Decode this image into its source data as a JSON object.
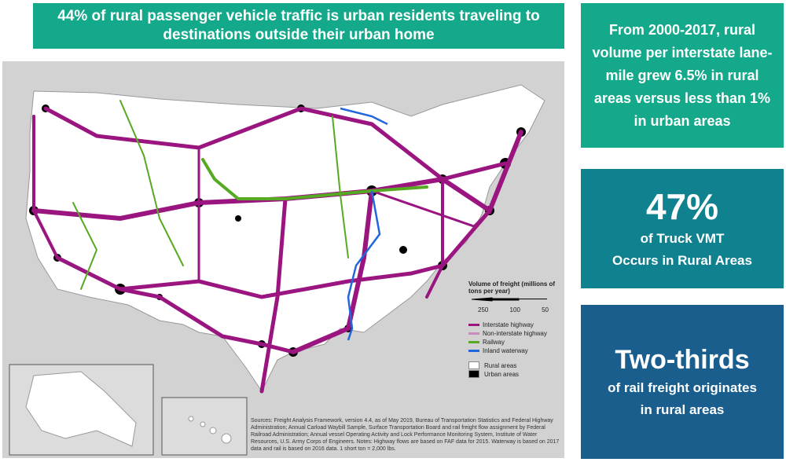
{
  "banner": {
    "text": "44% of rural passenger vehicle traffic is urban residents traveling to destinations outside their urban home"
  },
  "panel1": {
    "text": "From 2000-2017, rural volume per interstate lane-mile grew 6.5% in rural areas versus less than 1% in urban areas"
  },
  "panel2": {
    "value": "47%",
    "line1": "of Truck VMT",
    "line2": "Occurs in Rural Areas"
  },
  "panel3": {
    "value": "Two-thirds",
    "line1": "of rail freight originates",
    "line2": "in rural areas"
  },
  "legend": {
    "title": "Volume of freight (millions of tons per year)",
    "scale": [
      "250",
      "100",
      "50"
    ],
    "items": [
      {
        "label": "Interstate highway",
        "color": "#9b1580"
      },
      {
        "label": "Non-interstate highway",
        "color": "#c98bc0"
      },
      {
        "label": "Railway",
        "color": "#55aa22"
      },
      {
        "label": "Inland waterway",
        "color": "#2266dd"
      }
    ],
    "areas": [
      {
        "label": "Rural areas",
        "color": "#ffffff"
      },
      {
        "label": "Urban areas",
        "color": "#000000"
      }
    ]
  },
  "sources": "Sources: Freight Analysis Framework, version 4.4, as of May 2019, Bureau of Transportation Statistics and Federal Highway Administration; Annual Carload Waybill Sample, Surface Transportation Board and rail freight flow assignment by Federal Railroad Administration; Annual vessel Operating Activity and Lock Performance Monitoring System, Institute of Water Resources, U.S. Army Corps of Engineers. Notes: Highway flows are based on FAF data for 2015. Waterway is based on 2017 data and rail is based on 2016 data. 1 short ton = 2,000 lbs."
}
